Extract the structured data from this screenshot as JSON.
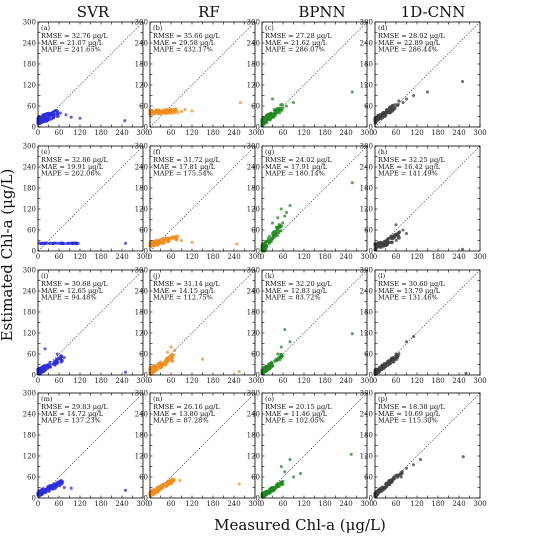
{
  "column_titles": [
    "SVR",
    "RF",
    "BPNN",
    "1D-CNN"
  ],
  "ylabel": "Estimated Chl-a (μg/L)",
  "xlabel": "Measured Chl-a (μg/L)",
  "colors": {
    "SVR": "#2b2bdc",
    "RF": "#f28c1c",
    "BPNN": "#1f8a1f",
    "1D-CNN": "#404040"
  },
  "chart_data": {
    "type": "scatter",
    "xlim": [
      0,
      300
    ],
    "ylim": [
      0,
      300
    ],
    "ticks": [
      0,
      30,
      60,
      90,
      120,
      150,
      180,
      210,
      240,
      270,
      300
    ],
    "tick_labels": [
      "0",
      "",
      "60",
      "",
      "120",
      "",
      "180",
      "",
      "240",
      "",
      "300"
    ],
    "reference_line": "1:1",
    "panels": [
      {
        "label": "(a)",
        "model": "SVR",
        "stats": [
          "RMSE = 32.76 μg/L",
          "MAE = 21.07 μg/L",
          "MAPE = 241.65%"
        ],
        "pattern": "svr_a"
      },
      {
        "label": "(b)",
        "model": "RF",
        "stats": [
          "RMSE = 35.66 μg/L",
          "MAE = 29.58 μg/L",
          "MAPE = 432.17%"
        ],
        "pattern": "rf_b"
      },
      {
        "label": "(c)",
        "model": "BPNN",
        "stats": [
          "RMSE = 27.28 μg/L",
          "MAE = 21.62 μg/L",
          "MAPE = 286.07%"
        ],
        "pattern": "bp_c"
      },
      {
        "label": "(d)",
        "model": "1D-CNN",
        "stats": [
          "RMSE = 28.02 μg/L",
          "MAE = 22.89 μg/L",
          "MAPE = 286.44%"
        ],
        "pattern": "cnn_d"
      },
      {
        "label": "(e)",
        "model": "SVR",
        "stats": [
          "RMSE = 32.86 μg/L",
          "MAE = 19.91 μg/L",
          "MAPE = 202.06%"
        ],
        "pattern": "svr_e"
      },
      {
        "label": "(f)",
        "model": "RF",
        "stats": [
          "RMSE = 31.72 μg/L",
          "MAE = 17.81 μg/L",
          "MAPE = 175.54%"
        ],
        "pattern": "rf_f"
      },
      {
        "label": "(g)",
        "model": "BPNN",
        "stats": [
          "RMSE = 24.02 μg/L",
          "MAE = 17.91 μg/L",
          "MAPE = 180.14%"
        ],
        "pattern": "bp_g"
      },
      {
        "label": "(h)",
        "model": "1D-CNN",
        "stats": [
          "RMSE = 32.25 μg/L",
          "MAE = 16.42 μg/L",
          "MAPE = 141.49%"
        ],
        "pattern": "cnn_h"
      },
      {
        "label": "(i)",
        "model": "SVR",
        "stats": [
          "RMSE = 30.68 μg/L",
          "MAE = 12.65 μg/L",
          "MAPE = 94.48%"
        ],
        "pattern": "svr_i"
      },
      {
        "label": "(j)",
        "model": "RF",
        "stats": [
          "RMSE = 31.14 μg/L",
          "MAE = 14.15 μg/L",
          "MAPE = 112.75%"
        ],
        "pattern": "rf_j"
      },
      {
        "label": "(k)",
        "model": "BPNN",
        "stats": [
          "RMSE = 32.20 μg/L",
          "MAE = 12.83 μg/L",
          "MAPE = 83.72%"
        ],
        "pattern": "bp_k"
      },
      {
        "label": "(l)",
        "model": "1D-CNN",
        "stats": [
          "RMSE = 30.60 μg/L",
          "MAE = 13.79 μg/L",
          "MAPE = 131.46%"
        ],
        "pattern": "cnn_l"
      },
      {
        "label": "(m)",
        "model": "SVR",
        "stats": [
          "RMSE = 29.83 μg/L",
          "MAE = 14.72 μg/L",
          "MAPE = 137.23%"
        ],
        "pattern": "svr_m"
      },
      {
        "label": "(n)",
        "model": "RF",
        "stats": [
          "RMSE = 26.16 μg/L",
          "MAE = 13.80 μg/L",
          "MAPE = 87.28%"
        ],
        "pattern": "rf_n"
      },
      {
        "label": "(o)",
        "model": "BPNN",
        "stats": [
          "RMSE = 20.15 μg/L",
          "MAE = 11.46 μg/L",
          "MAPE = 102.05%"
        ],
        "pattern": "bp_o"
      },
      {
        "label": "(p)",
        "model": "1D-CNN",
        "stats": [
          "RMSE = 18.38 μg/L",
          "MAE = 10.69 μg/L",
          "MAPE = 115.30%"
        ],
        "pattern": "cnn_p"
      }
    ]
  }
}
